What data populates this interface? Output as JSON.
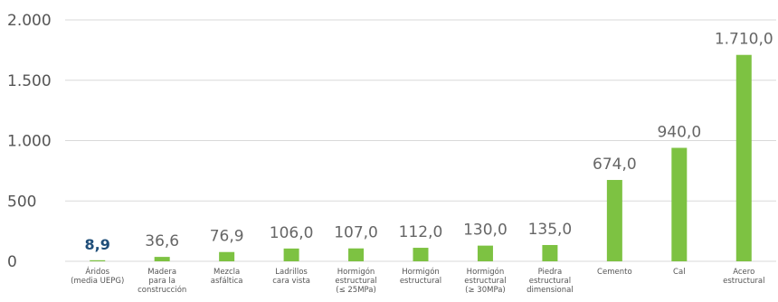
{
  "chart_data": {
    "type": "bar",
    "categories": [
      [
        "Áridos",
        "(media UEPG)"
      ],
      [
        "Madera",
        "para la",
        "construcción"
      ],
      [
        "Mezcla",
        "asfáltica"
      ],
      [
        "Ladrillos",
        "cara vista"
      ],
      [
        "Hormigón",
        "estructural",
        "(≤ 25MPa)"
      ],
      [
        "Hormigón",
        "estructural"
      ],
      [
        "Hormigón",
        "estructural",
        "(≥ 30MPa)"
      ],
      [
        "Piedra",
        "estructural",
        "dimensional"
      ],
      [
        "Cemento"
      ],
      [
        "Cal"
      ],
      [
        "Acero",
        "estructural"
      ]
    ],
    "values": [
      8.9,
      36.6,
      76.9,
      106.0,
      107.0,
      112.0,
      130.0,
      135.0,
      674.0,
      940.0,
      1710.0
    ],
    "value_labels": [
      "8,9",
      "36,6",
      "76,9",
      "106,0",
      "107,0",
      "112,0",
      "130,0",
      "135,0",
      "674,0",
      "940,0",
      "1.710,0"
    ],
    "highlight_index": 0,
    "ylim": [
      0,
      2000
    ],
    "yticks": [
      0,
      500,
      1000,
      1500,
      2000
    ],
    "ytick_labels": [
      "0",
      "500",
      "1.000",
      "1.500",
      "2.000"
    ],
    "grid": true,
    "colors": {
      "bar": "#7dc242",
      "highlight_label": "#1f4e79",
      "grid": "#d9d9d9"
    }
  }
}
